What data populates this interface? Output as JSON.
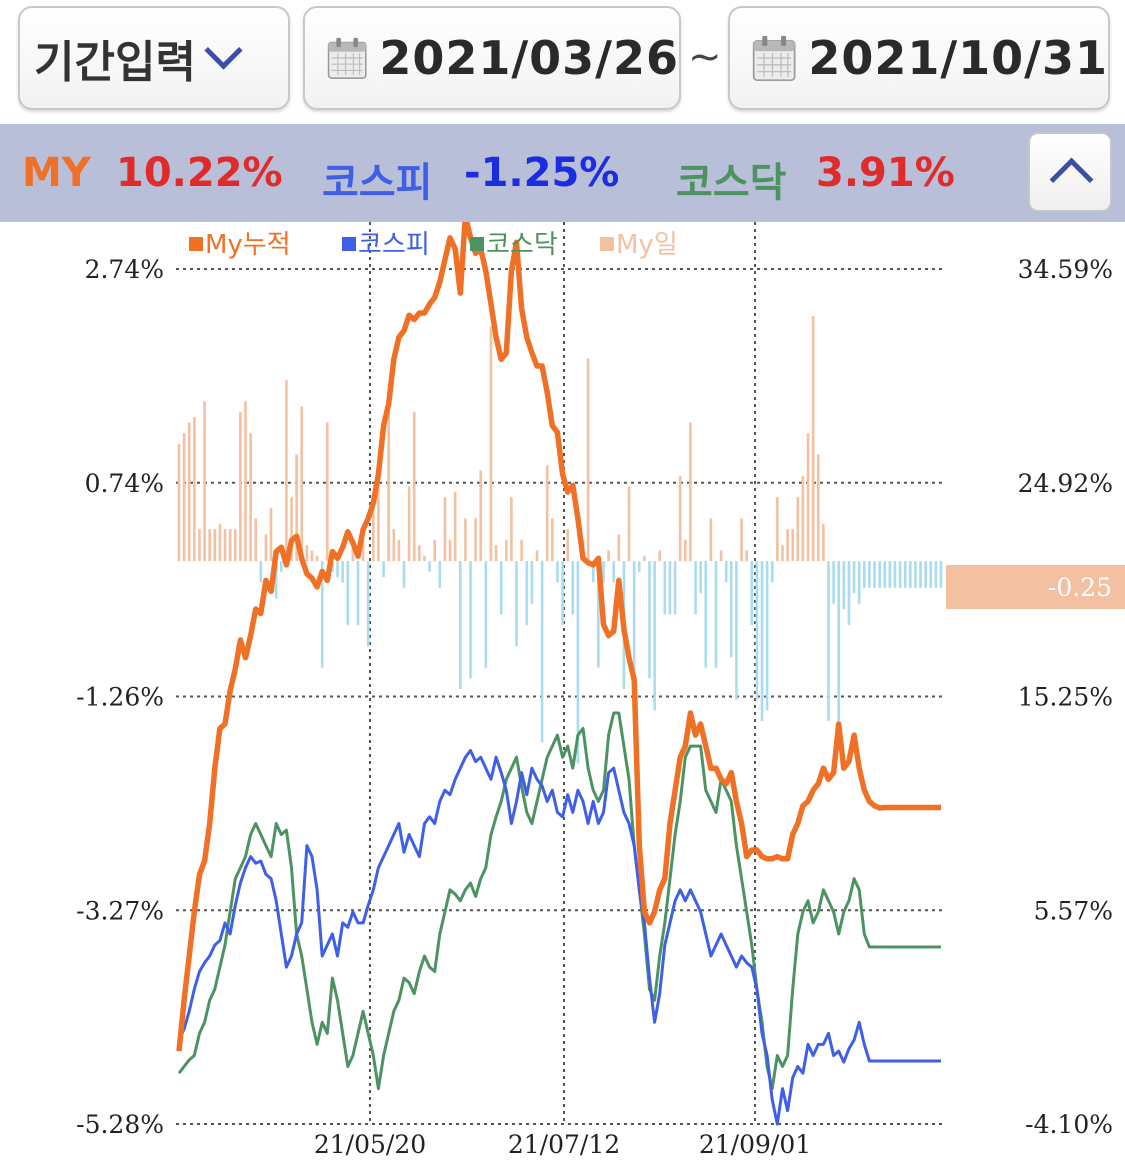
{
  "header": {
    "period_label": "기간입력",
    "date_from": "2021/03/26",
    "tilde": "~",
    "date_to": "2021/10/31"
  },
  "summary": {
    "my_label": "MY",
    "my_value": "10.22%",
    "kospi_label": "코스피",
    "kospi_value": "-1.25%",
    "kosdaq_label": "코스닥",
    "kosdaq_value": "3.91%"
  },
  "colors": {
    "my": "#f07126",
    "kospi": "#3f5fe6",
    "kosdaq": "#4c9361",
    "bar_pos": "#f3c1a2",
    "bar_neg": "#a9dcee",
    "my_value_text": "#e02b2b",
    "kospi_value_text": "#1a2de0",
    "kosdaq_value_text": "#e02b2b"
  },
  "icons": {
    "period": "chevron-down-icon",
    "from": "calendar-icon",
    "to": "calendar-icon",
    "collapse": "chevron-up-icon"
  },
  "chart_data": {
    "type": "line",
    "legend": [
      "My누적",
      "코스피",
      "코스닥",
      "My일"
    ],
    "left_axis_ticks": [
      "2.74%",
      "0.74%",
      "-1.26%",
      "-3.27%",
      "-5.28%"
    ],
    "left_axis_range": [
      -5.28,
      2.74
    ],
    "right_axis_ticks": [
      "34.59%",
      "24.92%",
      "15.25%",
      "5.57%",
      "-4.10%"
    ],
    "right_axis_range": [
      -4.1,
      34.59
    ],
    "x_ticks": [
      "21/05/20",
      "21/07/12",
      "21/09/01"
    ],
    "last_daily_label": "-0.25",
    "n_days": 150,
    "grid": true,
    "legend_position": "top",
    "series": [
      {
        "name": "My누적",
        "axis": "right",
        "values": [
          -0.8,
          1.5,
          3.5,
          5.5,
          7.2,
          7.8,
          9.5,
          12.0,
          13.8,
          14.0,
          15.5,
          16.5,
          17.8,
          17.0,
          18.0,
          19.2,
          19.0,
          20.5,
          20.0,
          21.8,
          22.0,
          21.2,
          22.3,
          22.5,
          21.5,
          20.8,
          20.6,
          20.2,
          20.9,
          20.5,
          21.8,
          21.5,
          22.0,
          22.7,
          22.2,
          21.6,
          22.8,
          23.3,
          24.0,
          25.3,
          27.5,
          28.5,
          30.5,
          31.5,
          31.8,
          32.5,
          32.3,
          32.6,
          32.6,
          33.0,
          33.3,
          34.0,
          35.0,
          36.0,
          35.5,
          33.5,
          37.0,
          36.0,
          35.3,
          35.5,
          34.5,
          33.0,
          31.5,
          30.5,
          30.8,
          34.5,
          35.8,
          32.8,
          31.5,
          30.8,
          30.2,
          30.2,
          29.0,
          27.5,
          27.2,
          25.3,
          24.5,
          24.8,
          23.3,
          21.5,
          21.3,
          21.2,
          21.5,
          18.5,
          18.0,
          18.2,
          20.5,
          18.3,
          17.0,
          16.0,
          8.5,
          5.5,
          5.0,
          5.5,
          6.5,
          7.0,
          9.5,
          11.0,
          12.5,
          13.0,
          14.5,
          13.5,
          14.0,
          13.0,
          12.0,
          12.0,
          11.5,
          11.3,
          11.8,
          10.5,
          9.5,
          8.0,
          8.3,
          8.3,
          8.0,
          7.9,
          7.9,
          8.0,
          7.9,
          7.9,
          9.0,
          9.5,
          10.3,
          10.5,
          11.0,
          11.3,
          12.0,
          11.5,
          11.8,
          14.0,
          12.0,
          12.3,
          13.5,
          12.0,
          11.0,
          10.5,
          10.3,
          10.2,
          10.22,
          10.22,
          10.22,
          10.22,
          10.22,
          10.22,
          10.22,
          10.22,
          10.22,
          10.22,
          10.22,
          10.22
        ]
      },
      {
        "name": "코스피",
        "axis": "right",
        "values": [
          -0.3,
          0.2,
          1.0,
          2.0,
          2.8,
          3.2,
          3.5,
          4.0,
          4.2,
          5.0,
          4.5,
          5.8,
          6.8,
          7.5,
          8.0,
          7.7,
          7.8,
          7.2,
          7.0,
          6.0,
          4.5,
          3.0,
          3.5,
          4.5,
          5.0,
          8.5,
          8.0,
          6.5,
          3.5,
          4.0,
          4.5,
          3.5,
          5.0,
          4.8,
          5.5,
          5.0,
          5.0,
          5.8,
          6.5,
          7.5,
          8.0,
          8.5,
          9.0,
          9.5,
          8.2,
          9.0,
          8.5,
          8.0,
          9.5,
          9.8,
          9.5,
          10.5,
          11.0,
          10.8,
          11.5,
          12.0,
          12.5,
          12.8,
          12.3,
          12.5,
          12.0,
          11.5,
          12.5,
          11.8,
          11.0,
          9.5,
          10.5,
          11.8,
          10.8,
          12.0,
          11.5,
          11.2,
          10.5,
          11.0,
          10.0,
          9.8,
          10.8,
          10.0,
          11.0,
          10.5,
          9.5,
          10.5,
          9.5,
          10.0,
          11.8,
          12.0,
          11.0,
          10.0,
          9.5,
          8.5,
          6.5,
          5.0,
          2.5,
          0.5,
          1.8,
          4.0,
          5.0,
          6.0,
          6.5,
          6.0,
          6.5,
          6.0,
          5.5,
          4.5,
          3.5,
          4.0,
          4.5,
          4.0,
          3.5,
          3.0,
          3.5,
          3.2,
          3.0,
          2.0,
          0.0,
          -1.0,
          -3.0,
          -4.1,
          -2.5,
          -3.5,
          -2.0,
          -1.5,
          -1.8,
          -0.5,
          -1.0,
          -0.5,
          -0.5,
          0.0,
          -1.0,
          -0.8,
          -1.3,
          -0.7,
          -0.3,
          0.5,
          -0.5,
          -1.25,
          -1.25,
          -1.25,
          -1.25,
          -1.25,
          -1.25,
          -1.25,
          -1.25,
          -1.25,
          -1.25,
          -1.25,
          -1.25,
          -1.25,
          -1.25,
          -1.25
        ]
      },
      {
        "name": "코스닥",
        "axis": "right",
        "values": [
          -1.8,
          -1.5,
          -1.2,
          -1.0,
          0.0,
          0.5,
          1.5,
          2.0,
          3.0,
          4.0,
          5.5,
          7.0,
          7.5,
          8.0,
          9.0,
          9.5,
          9.0,
          8.5,
          8.0,
          9.5,
          9.0,
          9.2,
          7.5,
          4.5,
          3.5,
          2.0,
          0.5,
          -0.5,
          0.5,
          0.0,
          2.5,
          1.5,
          0.0,
          -1.5,
          -1.0,
          0.0,
          1.0,
          0.0,
          -1.0,
          -2.5,
          -1.0,
          0.0,
          1.0,
          1.5,
          2.5,
          2.3,
          1.8,
          2.8,
          3.5,
          3.0,
          2.8,
          4.5,
          5.5,
          6.5,
          6.3,
          6.0,
          6.5,
          6.8,
          6.2,
          7.0,
          7.5,
          9.0,
          9.8,
          10.5,
          11.5,
          12.0,
          12.5,
          11.2,
          10.0,
          9.5,
          10.5,
          11.5,
          12.5,
          13.0,
          13.5,
          12.5,
          13.0,
          12.0,
          13.5,
          13.8,
          12.0,
          11.0,
          10.5,
          11.0,
          13.5,
          14.5,
          14.5,
          13.0,
          11.5,
          8.5,
          6.5,
          4.5,
          2.0,
          1.5,
          3.5,
          5.0,
          7.0,
          9.0,
          10.5,
          12.5,
          13.0,
          13.0,
          13.0,
          11.0,
          10.5,
          10.0,
          11.5,
          11.0,
          10.5,
          8.5,
          7.0,
          5.5,
          4.0,
          2.0,
          0.5,
          -1.5,
          -2.5,
          -1.0,
          -1.5,
          -1.0,
          2.0,
          4.5,
          5.5,
          6.0,
          5.0,
          5.5,
          6.5,
          6.0,
          5.5,
          4.5,
          5.5,
          6.0,
          7.0,
          6.5,
          4.5,
          3.91,
          3.91,
          3.91,
          3.91,
          3.91,
          3.91,
          3.91,
          3.91,
          3.91,
          3.91,
          3.91,
          3.91,
          3.91,
          3.91,
          3.91
        ]
      },
      {
        "name": "My일",
        "axis": "left",
        "type": "bar",
        "values": [
          1.1,
          1.2,
          1.3,
          1.35,
          0.3,
          1.5,
          0.3,
          0.3,
          0.35,
          0.3,
          0.3,
          0.3,
          1.4,
          1.5,
          1.2,
          0.4,
          -0.2,
          0.25,
          0.5,
          -0.35,
          -0.1,
          1.7,
          0.6,
          1.0,
          1.45,
          0.15,
          0.1,
          0.05,
          -1.0,
          1.3,
          -0.1,
          -0.15,
          -0.2,
          -0.6,
          0.15,
          -0.6,
          0.2,
          -0.8,
          0.6,
          0.8,
          -0.15,
          1.5,
          0.3,
          0.2,
          -0.25,
          0.7,
          1.4,
          0.15,
          0.05,
          -0.1,
          0.2,
          -0.25,
          0.6,
          0.2,
          0.65,
          -1.2,
          0.4,
          -1.1,
          0.4,
          0.85,
          -1.0,
          2.2,
          0.15,
          -0.5,
          0.2,
          0.6,
          -0.8,
          0.2,
          -0.6,
          -0.4,
          0.1,
          -1.7,
          0.9,
          0.4,
          -0.2,
          -0.6,
          0.3,
          -0.5,
          -1.9,
          0.2,
          1.9,
          -0.2,
          -1.0,
          -0.2,
          0.1,
          -0.2,
          0.25,
          -1.2,
          0.7,
          -1.5,
          -0.1,
          0.05,
          -1.1,
          -1.4,
          0.1,
          -0.5,
          -0.5,
          -0.5,
          0.8,
          0.2,
          1.3,
          -0.5,
          -0.3,
          -1.0,
          0.4,
          -1.0,
          0.1,
          -0.2,
          -0.9,
          -1.3,
          0.4,
          0.1,
          -0.6,
          -1.3,
          -1.5,
          -1.4,
          -0.2,
          0.6,
          0.15,
          0.3,
          0.3,
          0.6,
          0.8,
          1.2,
          2.3,
          1.0,
          0.35,
          -1.5,
          -0.4,
          -1.5,
          -0.45,
          -0.6,
          -0.3,
          -0.4,
          -0.25,
          -0.25,
          -0.25,
          -0.25,
          -0.25,
          -0.25,
          -0.25,
          -0.25,
          -0.25,
          -0.25,
          -0.25,
          -0.25,
          -0.25,
          -0.25,
          -0.25,
          -0.25
        ]
      }
    ]
  }
}
